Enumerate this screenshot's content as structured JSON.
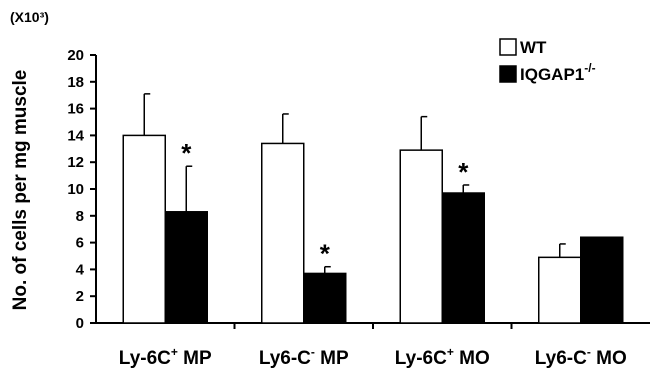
{
  "chart_data": {
    "type": "bar",
    "title": "",
    "xlabel": "",
    "ylabel": "No. of cells per mg muscle",
    "y_unit": "(X10³)",
    "ylim": [
      0,
      20
    ],
    "y_ticks": [
      "0",
      "2",
      "4",
      "6",
      "8",
      "10",
      "12",
      "14",
      "16",
      "18",
      "20"
    ],
    "categories": [
      {
        "main": "Ly-6C",
        "sup": "+",
        "rest": " MP"
      },
      {
        "main": "Ly6-C",
        "sup": "-",
        "rest": " MP"
      },
      {
        "main": "Ly-6C",
        "sup": "+",
        "rest": " MO"
      },
      {
        "main": "Ly6-C",
        "sup": "-",
        "rest": " MO"
      }
    ],
    "series": [
      {
        "name": "WT",
        "values": [
          14.0,
          13.4,
          12.9,
          4.9
        ],
        "errors": [
          3.1,
          2.2,
          2.5,
          1.0
        ],
        "fill": "#ffffff"
      },
      {
        "name": "IQGAP1",
        "name_sup": "-/-",
        "values": [
          8.3,
          3.7,
          9.7,
          6.4
        ],
        "errors": [
          3.4,
          0.5,
          0.6,
          0.0
        ],
        "fill": "#000000"
      }
    ],
    "significance": [
      "*",
      "*",
      "*",
      ""
    ],
    "grid": false,
    "legend_position": "top-right"
  }
}
